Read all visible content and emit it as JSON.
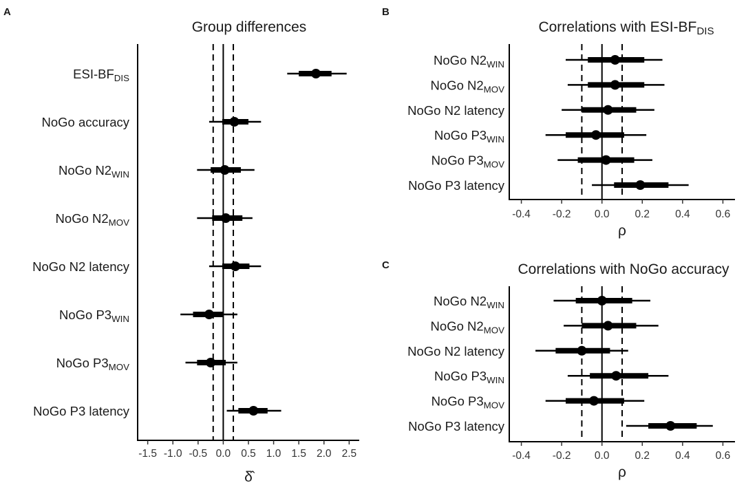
{
  "chart_data": [
    {
      "id": "A",
      "panel_letter": "A",
      "type": "forest",
      "title": "Group differences",
      "xlabel": "δ̂",
      "xlim": [
        -1.7,
        2.7
      ],
      "ticks": [
        -1.5,
        -1.0,
        -0.5,
        0.0,
        0.5,
        1.0,
        1.5,
        2.0,
        2.5
      ],
      "tick_labels": [
        "-1.5",
        "-1.0",
        "-0.5",
        "0.0",
        "0.5",
        "1.0",
        "1.5",
        "2.0",
        "2.5"
      ],
      "reference_lines": [
        -0.2,
        0.2
      ],
      "rows": [
        {
          "label": "ESI-BF",
          "sub": "DIS",
          "estimate": 1.84,
          "inner": [
            1.5,
            2.15
          ],
          "outer": [
            1.27,
            2.45
          ]
        },
        {
          "label": "NoGo accuracy",
          "sub": "",
          "estimate": 0.22,
          "inner": [
            -0.02,
            0.5
          ],
          "outer": [
            -0.28,
            0.75
          ]
        },
        {
          "label": "NoGo N2",
          "sub": "WIN",
          "estimate": 0.03,
          "inner": [
            -0.25,
            0.35
          ],
          "outer": [
            -0.52,
            0.62
          ]
        },
        {
          "label": "NoGo N2",
          "sub": "MOV",
          "estimate": 0.05,
          "inner": [
            -0.22,
            0.38
          ],
          "outer": [
            -0.52,
            0.58
          ]
        },
        {
          "label": "NoGo N2 latency",
          "sub": "",
          "estimate": 0.24,
          "inner": [
            -0.02,
            0.52
          ],
          "outer": [
            -0.28,
            0.75
          ]
        },
        {
          "label": "NoGo P3",
          "sub": "WIN",
          "estimate": -0.28,
          "inner": [
            -0.6,
            0.0
          ],
          "outer": [
            -0.85,
            0.28
          ]
        },
        {
          "label": "NoGo P3",
          "sub": "MOV",
          "estimate": -0.25,
          "inner": [
            -0.52,
            0.05
          ],
          "outer": [
            -0.75,
            0.28
          ]
        },
        {
          "label": "NoGo P3 latency",
          "sub": "",
          "estimate": 0.6,
          "inner": [
            0.3,
            0.88
          ],
          "outer": [
            0.07,
            1.15
          ]
        }
      ]
    },
    {
      "id": "B",
      "panel_letter": "B",
      "type": "forest",
      "title": "Correlations with ESI-BF",
      "title_sub": "DIS",
      "xlabel": "ρ",
      "xlim": [
        -0.46,
        0.66
      ],
      "ticks": [
        -0.4,
        -0.2,
        0.0,
        0.2,
        0.4,
        0.6
      ],
      "tick_labels": [
        "-0.4",
        "-0.2",
        "0.0",
        "0.2",
        "0.4",
        "0.6"
      ],
      "reference_lines": [
        -0.1,
        0.1
      ],
      "rows": [
        {
          "label": "NoGo N2",
          "sub": "WIN",
          "estimate": 0.065,
          "inner": [
            -0.07,
            0.21
          ],
          "outer": [
            -0.18,
            0.3
          ]
        },
        {
          "label": "NoGo N2",
          "sub": "MOV",
          "estimate": 0.065,
          "inner": [
            -0.07,
            0.21
          ],
          "outer": [
            -0.17,
            0.31
          ]
        },
        {
          "label": "NoGo N2 latency",
          "sub": "",
          "estimate": 0.03,
          "inner": [
            -0.1,
            0.17
          ],
          "outer": [
            -0.2,
            0.26
          ]
        },
        {
          "label": "NoGo P3",
          "sub": "WIN",
          "estimate": -0.03,
          "inner": [
            -0.18,
            0.11
          ],
          "outer": [
            -0.28,
            0.22
          ]
        },
        {
          "label": "NoGo P3",
          "sub": "MOV",
          "estimate": 0.02,
          "inner": [
            -0.12,
            0.16
          ],
          "outer": [
            -0.22,
            0.25
          ]
        },
        {
          "label": "NoGo P3 latency",
          "sub": "",
          "estimate": 0.19,
          "inner": [
            0.06,
            0.33
          ],
          "outer": [
            -0.05,
            0.43
          ]
        }
      ]
    },
    {
      "id": "C",
      "panel_letter": "C",
      "type": "forest",
      "title": "Correlations with NoGo accuracy",
      "xlabel": "ρ",
      "xlim": [
        -0.46,
        0.66
      ],
      "ticks": [
        -0.4,
        -0.2,
        0.0,
        0.2,
        0.4,
        0.6
      ],
      "tick_labels": [
        "-0.4",
        "-0.2",
        "0.0",
        "0.2",
        "0.4",
        "0.6"
      ],
      "reference_lines": [
        -0.1,
        0.1
      ],
      "rows": [
        {
          "label": "NoGo N2",
          "sub": "WIN",
          "estimate": 0.0,
          "inner": [
            -0.13,
            0.15
          ],
          "outer": [
            -0.24,
            0.24
          ]
        },
        {
          "label": "NoGo N2",
          "sub": "MOV",
          "estimate": 0.03,
          "inner": [
            -0.1,
            0.17
          ],
          "outer": [
            -0.19,
            0.28
          ]
        },
        {
          "label": "NoGo N2 latency",
          "sub": "",
          "estimate": -0.1,
          "inner": [
            -0.23,
            0.04
          ],
          "outer": [
            -0.33,
            0.13
          ]
        },
        {
          "label": "NoGo P3",
          "sub": "WIN",
          "estimate": 0.07,
          "inner": [
            -0.06,
            0.23
          ],
          "outer": [
            -0.17,
            0.33
          ]
        },
        {
          "label": "NoGo P3",
          "sub": "MOV",
          "estimate": -0.04,
          "inner": [
            -0.18,
            0.11
          ],
          "outer": [
            -0.28,
            0.21
          ]
        },
        {
          "label": "NoGo P3 latency",
          "sub": "",
          "estimate": 0.34,
          "inner": [
            0.23,
            0.47
          ],
          "outer": [
            0.12,
            0.55
          ]
        }
      ]
    }
  ]
}
